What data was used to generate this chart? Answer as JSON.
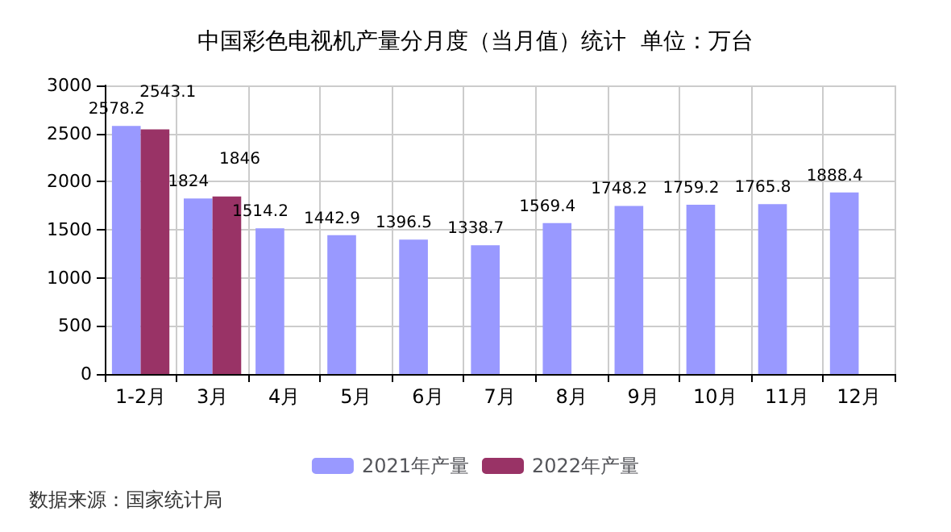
{
  "chart_data": {
    "type": "bar",
    "title": "中国彩色电视机产量分月度（当月值）统计  单位：万台",
    "categories": [
      "1-2月",
      "3月",
      "4月",
      "5月",
      "6月",
      "7月",
      "8月",
      "9月",
      "10月",
      "11月",
      "12月"
    ],
    "series": [
      {
        "name": "2021年产量",
        "color": "#9999ff",
        "values": [
          2578.2,
          1824,
          1514.2,
          1442.9,
          1396.5,
          1338.7,
          1569.4,
          1748.2,
          1759.2,
          1765.8,
          1888.4
        ]
      },
      {
        "name": "2022年产量",
        "color": "#993366",
        "values": [
          2543.1,
          1846,
          null,
          null,
          null,
          null,
          null,
          null,
          null,
          null,
          null
        ]
      }
    ],
    "ylim": [
      0,
      3000
    ],
    "yticks": [
      0,
      500,
      1000,
      1500,
      2000,
      2500,
      3000
    ],
    "grid": true,
    "legend": "bottom",
    "data_labels": true,
    "annotations": [
      "数据来源：国家统计局"
    ]
  }
}
